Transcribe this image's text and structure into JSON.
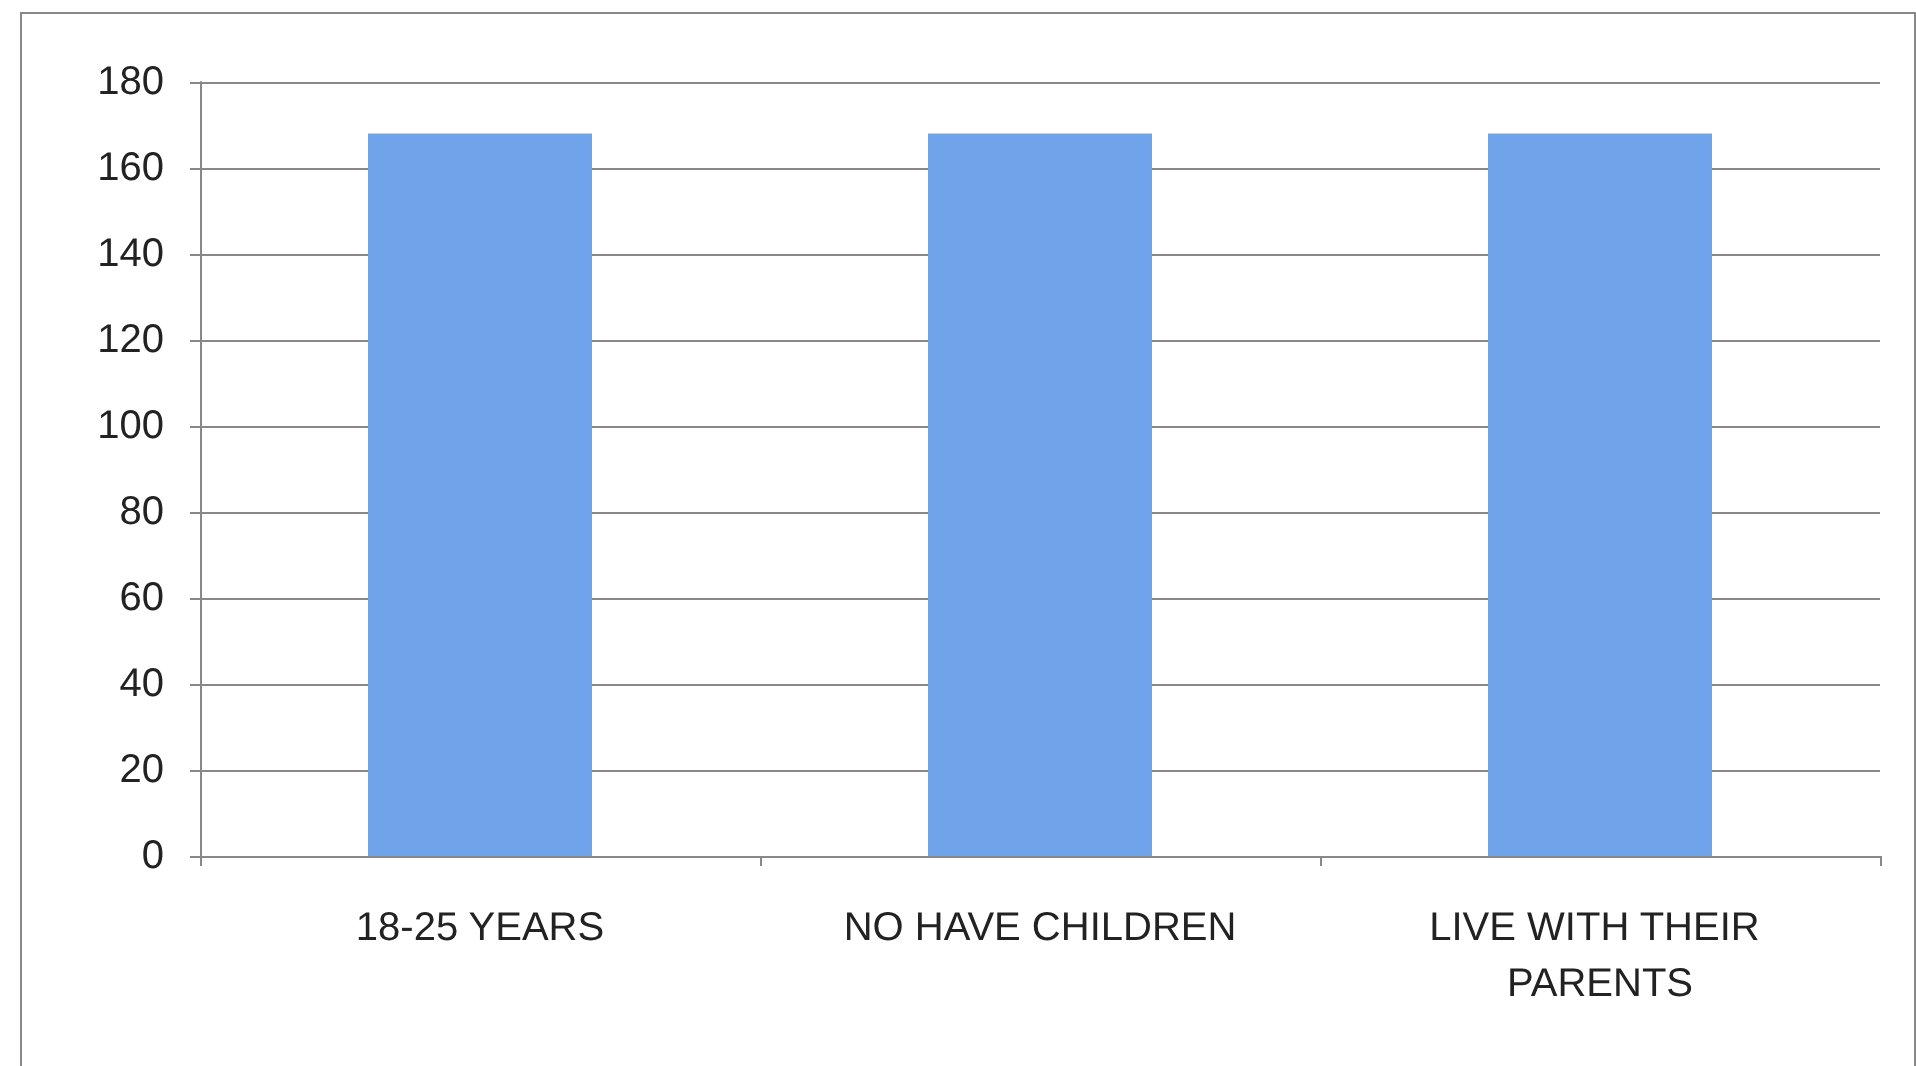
{
  "chart_data": {
    "type": "bar",
    "categories": [
      "18-25 YEARS",
      "NO HAVE CHILDREN",
      "LIVE WITH THEIR PARENTS"
    ],
    "values": [
      168,
      168,
      168
    ],
    "color": "#6fa4ea",
    "ylim": [
      0,
      180
    ],
    "yticks": [
      0,
      20,
      40,
      60,
      80,
      100,
      120,
      140,
      160,
      180
    ],
    "grid": "y"
  }
}
